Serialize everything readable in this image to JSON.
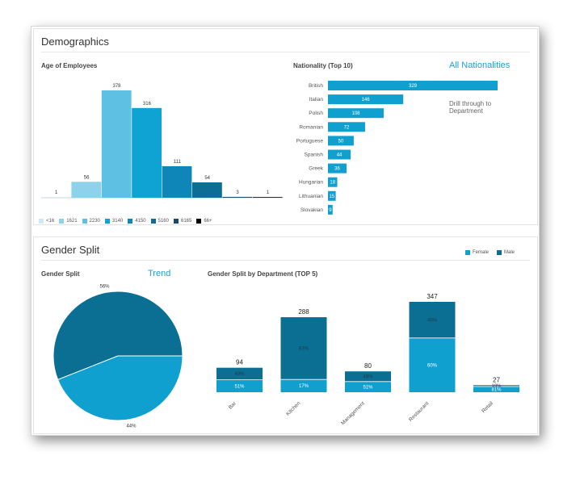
{
  "demographics": {
    "title": "Demographics",
    "age_subtitle": "Age of Employees",
    "nationality_subtitle": "Nationality (Top 10)",
    "all_link": "All Nationalities",
    "drill_text": "Drill through to Department"
  },
  "gender": {
    "title": "Gender Split",
    "pie_subtitle": "Gender Split",
    "trend_link": "Trend",
    "dept_subtitle": "Gender Split by Department (TOP 5)",
    "legend": [
      {
        "name": "Female",
        "color": "#0fa0d0"
      },
      {
        "name": "Male",
        "color": "#0b6f93"
      }
    ]
  },
  "chart_data": [
    {
      "type": "bar",
      "title": "Age of Employees",
      "categories": [
        "<16",
        "1621",
        "2230",
        "3140",
        "4150",
        "5160",
        "6165",
        "66+"
      ],
      "values": [
        1,
        56,
        378,
        316,
        111,
        54,
        3,
        1
      ],
      "colors": [
        "#cde9f3",
        "#8dd1ea",
        "#5ec0e2",
        "#0fa3d3",
        "#0e87b8",
        "#0d6d94",
        "#1a4a68",
        "#000000"
      ],
      "ylim": [
        0,
        378
      ]
    },
    {
      "type": "bar",
      "orientation": "horizontal",
      "title": "Nationality (Top 10)",
      "categories": [
        "British",
        "Italian",
        "Polish",
        "Romanian",
        "Portuguese",
        "Spanish",
        "Greek",
        "Hungarian",
        "Lithuanian",
        "Slovakian"
      ],
      "values": [
        329,
        146,
        108,
        72,
        50,
        44,
        36,
        18,
        15,
        9
      ],
      "color": "#0fa0d0"
    },
    {
      "type": "pie",
      "title": "Gender Split",
      "slices": [
        {
          "name": "Male",
          "value": 56,
          "label": "56%",
          "color": "#0b6f93"
        },
        {
          "name": "Female",
          "value": 44,
          "label": "44%",
          "color": "#0fa0d0"
        }
      ]
    },
    {
      "type": "bar",
      "stacked": true,
      "title": "Gender Split by Department (TOP 5)",
      "categories": [
        "Bar",
        "Kitchen",
        "Management",
        "Restaurant",
        "Retail"
      ],
      "totals": [
        94,
        288,
        80,
        347,
        27
      ],
      "series": [
        {
          "name": "Female",
          "color": "#0fa0d0",
          "percent": [
            51,
            17,
            51,
            60,
            81
          ],
          "labels": [
            "51%",
            "17%",
            "51%",
            "60%",
            "81%"
          ]
        },
        {
          "name": "Male",
          "color": "#0b6f93",
          "percent": [
            49,
            83,
            49,
            40,
            19
          ],
          "labels": [
            "49%",
            "83%",
            "49%",
            "40%",
            "19%"
          ]
        }
      ]
    }
  ]
}
